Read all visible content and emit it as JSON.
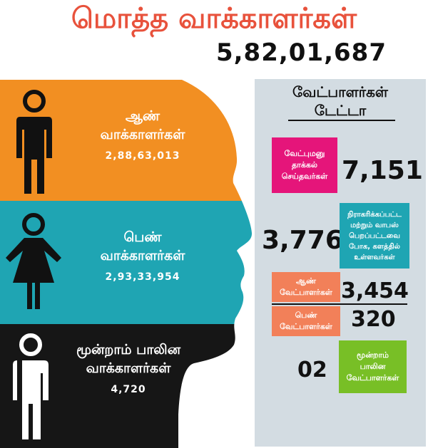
{
  "header": {
    "title": "மொத்த வாக்காளர்கள்",
    "total": "5,82,01,687"
  },
  "voters": {
    "male": {
      "label_line1": "ஆண்",
      "label_line2": "வாக்காளர்கள்",
      "count": "2,88,63,013",
      "color": "#f28f22",
      "icon": "male-person-icon"
    },
    "female": {
      "label_line1": "பெண்",
      "label_line2": "வாக்காளர்கள்",
      "count": "2,93,33,954",
      "color": "#1fa5b3",
      "icon": "female-person-icon"
    },
    "third": {
      "label_line1": "மூன்றாம் பாலின",
      "label_line2": "வாக்காளர்கள்",
      "count": "4,720",
      "color": "#161616",
      "icon": "third-gender-person-icon"
    }
  },
  "candidates": {
    "title_line1": "வேட்பாளர்கள்",
    "title_line2": "டேட்டா",
    "filed": {
      "l1": "வேட்புமனு",
      "l2": "தாக்கல்",
      "l3": "செய்தவர்கள்",
      "value": "7,151",
      "color": "#e5157a"
    },
    "remaining": {
      "l1": "நிராகரிக்கப்பட்ட",
      "l2": "மற்றும் வாபஸ்",
      "l3": "பெறப்பட்டவை",
      "l4": "போக, களத்தில்",
      "l5": "உள்ளவர்கள்",
      "value": "3,776",
      "color": "#1fa5b3"
    },
    "male": {
      "l1": "ஆண்",
      "l2": "வேட்பாளர்கள்",
      "value": "3,454",
      "color": "#f28059"
    },
    "female": {
      "l1": "பெண்",
      "l2": "வேட்பாளர்கள்",
      "value": "320",
      "color": "#f28059"
    },
    "third": {
      "l1": "மூன்றாம்",
      "l2": "பாலின",
      "l3": "வேட்பாளர்கள்",
      "value": "02",
      "color": "#78bf26"
    }
  }
}
